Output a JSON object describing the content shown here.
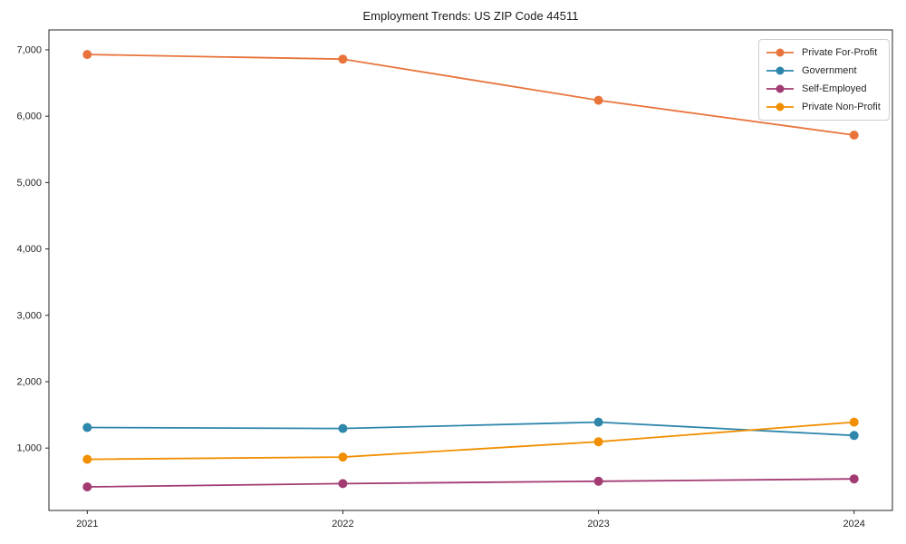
{
  "chart_data": {
    "type": "line",
    "title": "Employment Trends: US ZIP Code 44511",
    "xlabel": "",
    "ylabel": "",
    "x": [
      2021,
      2022,
      2023,
      2024
    ],
    "x_tick_labels": [
      "2021",
      "2022",
      "2023",
      "2024"
    ],
    "series": [
      {
        "name": "Private For-Profit",
        "color": "#E8743C",
        "values": [
          6930,
          6860,
          6240,
          5715
        ]
      },
      {
        "name": "Government",
        "color": "#2E86AB",
        "values": [
          1310,
          1295,
          1390,
          1190
        ]
      },
      {
        "name": "Self-Employed",
        "color": "#A23B72",
        "values": [
          415,
          465,
          500,
          535
        ]
      },
      {
        "name": "Private Non-Profit",
        "color": "#F18F01",
        "values": [
          830,
          865,
          1095,
          1390
        ]
      }
    ],
    "yticks": [
      1000,
      2000,
      3000,
      4000,
      5000,
      6000,
      7000
    ],
    "ytick_labels": [
      "1,000",
      "2,000",
      "3,000",
      "4,000",
      "5,000",
      "6,000",
      "7,000"
    ],
    "xlim": [
      2020.85,
      2024.15
    ],
    "ylim": [
      60,
      7300
    ],
    "grid": false,
    "legend_position": "upper right",
    "axis_color": "#262626",
    "background": "#ffffff",
    "marker": "circle",
    "marker_radius": 5,
    "line_width": 1.8
  }
}
